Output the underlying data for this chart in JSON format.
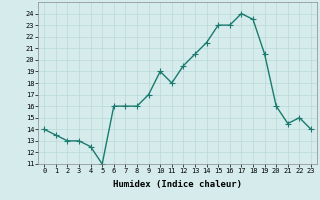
{
  "xlabel": "Humidex (Indice chaleur)",
  "x": [
    0,
    1,
    2,
    3,
    4,
    5,
    6,
    7,
    8,
    9,
    10,
    11,
    12,
    13,
    14,
    15,
    16,
    17,
    18,
    19,
    20,
    21,
    22,
    23
  ],
  "y": [
    14,
    13.5,
    13,
    13,
    12.5,
    11,
    16,
    16,
    16,
    17,
    19,
    18,
    19.5,
    20.5,
    21.5,
    23,
    23,
    24,
    23.5,
    20.5,
    16,
    14.5,
    15,
    14
  ],
  "line_color": "#1a7a6e",
  "marker": "+",
  "marker_color": "#1a7a6e",
  "bg_color": "#d6ecec",
  "grid_color": "#b8d8d8",
  "ylim": [
    11,
    25
  ],
  "xlim": [
    -0.5,
    23.5
  ],
  "yticks": [
    11,
    12,
    13,
    14,
    15,
    16,
    17,
    18,
    19,
    20,
    21,
    22,
    23,
    24
  ],
  "xticks": [
    0,
    1,
    2,
    3,
    4,
    5,
    6,
    7,
    8,
    9,
    10,
    11,
    12,
    13,
    14,
    15,
    16,
    17,
    18,
    19,
    20,
    21,
    22,
    23
  ],
  "tick_fontsize": 5.0,
  "xlabel_fontsize": 6.5,
  "linewidth": 1.0,
  "markersize": 4,
  "marker_linewidth": 0.8
}
